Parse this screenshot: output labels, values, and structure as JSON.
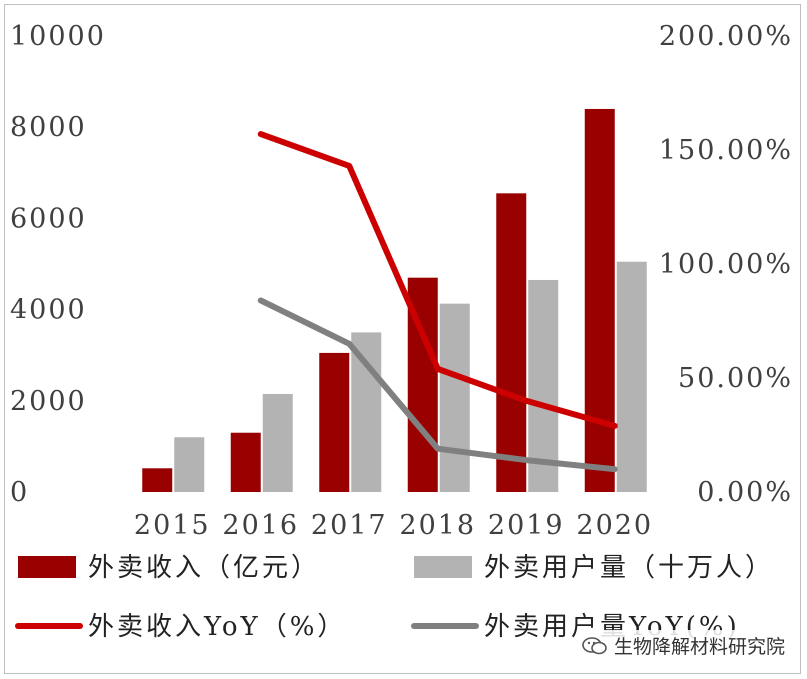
{
  "chart_data": {
    "type": "bar+line",
    "categories": [
      "2015",
      "2016",
      "2017",
      "2018",
      "2019",
      "2020"
    ],
    "left_axis": {
      "ylim": [
        0,
        10000
      ],
      "ticks": [
        "0",
        "2000",
        "4000",
        "6000",
        "8000",
        "10000"
      ]
    },
    "right_axis": {
      "ylim": [
        0,
        200
      ],
      "ticks": [
        "0.00%",
        "50.00%",
        "100.00%",
        "150.00%",
        "200.00%"
      ]
    },
    "bar_series": [
      {
        "name": "外卖收入（亿元）",
        "color": "#990000",
        "values": [
          520,
          1300,
          3050,
          4700,
          6550,
          8400
        ]
      },
      {
        "name": "外卖用户量（十万人）",
        "color": "#b3b3b3",
        "values": [
          1200,
          2150,
          3500,
          4130,
          4650,
          5050
        ]
      }
    ],
    "line_series": [
      {
        "name": "外卖收入YoY（%）",
        "color": "#cc0000",
        "values": [
          null,
          157,
          143,
          54,
          40,
          29
        ]
      },
      {
        "name": "外卖用户量YoY(%)",
        "color": "#808080",
        "values": [
          null,
          84,
          65,
          19,
          14,
          10
        ]
      }
    ]
  },
  "legend": {
    "items": [
      {
        "label": "外卖收入（亿元）",
        "kind": "bar",
        "color": "#990000"
      },
      {
        "label": "外卖用户量（十万人）",
        "kind": "bar",
        "color": "#b3b3b3"
      },
      {
        "label": "外卖收入YoY（%）",
        "kind": "line",
        "color": "#cc0000"
      },
      {
        "label": "外卖用户量YoY(%)",
        "kind": "line",
        "color": "#808080"
      }
    ]
  },
  "watermark": {
    "text": "生物降解材料研究院",
    "icon": "wechat-icon"
  }
}
